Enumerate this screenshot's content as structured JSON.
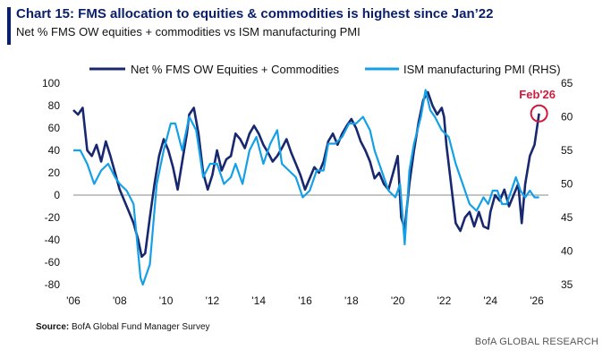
{
  "header": {
    "title": "Chart 15: FMS allocation to equities & commodities is highest since Jan’22",
    "subtitle": "Net % FMS OW equities + commodities vs ISM manufacturing PMI"
  },
  "footer": {
    "source_label": "Source:",
    "source_text": "BofA Global Fund Manager Survey",
    "brand": "BofA GLOBAL RESEARCH"
  },
  "colors": {
    "series1": "#17286f",
    "series2": "#14a0e6",
    "zero_line": "#8a8a8a",
    "annotation": "#d01b3d"
  },
  "chart_data": {
    "type": "line",
    "x_ticks": [
      "'06",
      "'08",
      "'10",
      "'12",
      "'14",
      "'16",
      "'18",
      "'20",
      "'22",
      "'24",
      "'26"
    ],
    "xlim": [
      2006,
      2026.5
    ],
    "ylim_left": [
      -80,
      100
    ],
    "ylim_right": [
      35,
      65
    ],
    "yticks_left": [
      "100",
      "80",
      "60",
      "40",
      "20",
      "0",
      "-20",
      "-40",
      "-60",
      "-80"
    ],
    "yticks_right": [
      "65",
      "60",
      "55",
      "50",
      "45",
      "40",
      "35"
    ],
    "grid": false,
    "legend_position": "top",
    "annotation": {
      "label": "Feb'26",
      "x": 2026.1,
      "y": 73
    },
    "series": [
      {
        "name": "Net % FMS OW Equities + Commodities",
        "axis": "left",
        "points": [
          [
            2006.0,
            76
          ],
          [
            2006.2,
            72
          ],
          [
            2006.4,
            78
          ],
          [
            2006.6,
            40
          ],
          [
            2006.8,
            35
          ],
          [
            2007.0,
            45
          ],
          [
            2007.2,
            30
          ],
          [
            2007.4,
            48
          ],
          [
            2007.6,
            35
          ],
          [
            2007.8,
            20
          ],
          [
            2008.0,
            5
          ],
          [
            2008.2,
            -5
          ],
          [
            2008.4,
            -15
          ],
          [
            2008.6,
            -25
          ],
          [
            2008.8,
            -40
          ],
          [
            2008.95,
            -55
          ],
          [
            2009.1,
            -52
          ],
          [
            2009.3,
            -20
          ],
          [
            2009.5,
            10
          ],
          [
            2009.7,
            35
          ],
          [
            2009.9,
            50
          ],
          [
            2010.1,
            40
          ],
          [
            2010.3,
            25
          ],
          [
            2010.5,
            5
          ],
          [
            2010.7,
            30
          ],
          [
            2010.9,
            55
          ],
          [
            2011.0,
            72
          ],
          [
            2011.2,
            78
          ],
          [
            2011.4,
            55
          ],
          [
            2011.6,
            20
          ],
          [
            2011.8,
            5
          ],
          [
            2012.0,
            18
          ],
          [
            2012.2,
            40
          ],
          [
            2012.4,
            22
          ],
          [
            2012.6,
            32
          ],
          [
            2012.8,
            35
          ],
          [
            2013.0,
            55
          ],
          [
            2013.2,
            50
          ],
          [
            2013.4,
            42
          ],
          [
            2013.6,
            55
          ],
          [
            2013.8,
            62
          ],
          [
            2014.0,
            55
          ],
          [
            2014.2,
            45
          ],
          [
            2014.4,
            38
          ],
          [
            2014.6,
            30
          ],
          [
            2014.8,
            35
          ],
          [
            2015.0,
            42
          ],
          [
            2015.2,
            50
          ],
          [
            2015.4,
            38
          ],
          [
            2015.6,
            28
          ],
          [
            2015.8,
            18
          ],
          [
            2016.0,
            5
          ],
          [
            2016.2,
            15
          ],
          [
            2016.4,
            25
          ],
          [
            2016.6,
            20
          ],
          [
            2016.8,
            30
          ],
          [
            2017.0,
            48
          ],
          [
            2017.2,
            55
          ],
          [
            2017.4,
            45
          ],
          [
            2017.6,
            55
          ],
          [
            2017.8,
            62
          ],
          [
            2018.0,
            68
          ],
          [
            2018.2,
            60
          ],
          [
            2018.4,
            48
          ],
          [
            2018.6,
            40
          ],
          [
            2018.8,
            30
          ],
          [
            2019.0,
            15
          ],
          [
            2019.2,
            20
          ],
          [
            2019.4,
            10
          ],
          [
            2019.6,
            5
          ],
          [
            2019.8,
            20
          ],
          [
            2020.0,
            35
          ],
          [
            2020.15,
            -20
          ],
          [
            2020.3,
            -30
          ],
          [
            2020.5,
            10
          ],
          [
            2020.7,
            40
          ],
          [
            2020.9,
            65
          ],
          [
            2021.1,
            85
          ],
          [
            2021.3,
            92
          ],
          [
            2021.5,
            80
          ],
          [
            2021.7,
            72
          ],
          [
            2021.9,
            78
          ],
          [
            2022.0,
            70
          ],
          [
            2022.1,
            45
          ],
          [
            2022.3,
            10
          ],
          [
            2022.5,
            -25
          ],
          [
            2022.7,
            -32
          ],
          [
            2022.9,
            -20
          ],
          [
            2023.1,
            -15
          ],
          [
            2023.3,
            -28
          ],
          [
            2023.5,
            -15
          ],
          [
            2023.7,
            -28
          ],
          [
            2023.9,
            -30
          ],
          [
            2024.0,
            -15
          ],
          [
            2024.2,
            0
          ],
          [
            2024.4,
            -5
          ],
          [
            2024.6,
            5
          ],
          [
            2024.8,
            -10
          ],
          [
            2025.0,
            0
          ],
          [
            2025.2,
            10
          ],
          [
            2025.35,
            -25
          ],
          [
            2025.5,
            10
          ],
          [
            2025.7,
            35
          ],
          [
            2025.9,
            45
          ],
          [
            2026.1,
            73
          ]
        ]
      },
      {
        "name": "ISM manufacturing PMI (RHS)",
        "axis": "right",
        "points": [
          [
            2006.0,
            55
          ],
          [
            2006.3,
            55
          ],
          [
            2006.6,
            53
          ],
          [
            2006.9,
            50
          ],
          [
            2007.2,
            52
          ],
          [
            2007.5,
            53
          ],
          [
            2007.8,
            51
          ],
          [
            2008.0,
            50
          ],
          [
            2008.3,
            49
          ],
          [
            2008.6,
            47
          ],
          [
            2008.9,
            36
          ],
          [
            2009.0,
            35
          ],
          [
            2009.3,
            38
          ],
          [
            2009.6,
            50
          ],
          [
            2009.9,
            55
          ],
          [
            2010.2,
            59
          ],
          [
            2010.4,
            59
          ],
          [
            2010.7,
            55
          ],
          [
            2011.0,
            60
          ],
          [
            2011.3,
            58
          ],
          [
            2011.6,
            51
          ],
          [
            2011.9,
            53
          ],
          [
            2012.2,
            53
          ],
          [
            2012.5,
            50
          ],
          [
            2012.8,
            51
          ],
          [
            2013.0,
            53
          ],
          [
            2013.3,
            50
          ],
          [
            2013.6,
            55
          ],
          [
            2013.9,
            57
          ],
          [
            2014.2,
            53
          ],
          [
            2014.5,
            56
          ],
          [
            2014.8,
            58
          ],
          [
            2015.0,
            53
          ],
          [
            2015.3,
            52
          ],
          [
            2015.6,
            51
          ],
          [
            2015.9,
            48
          ],
          [
            2016.2,
            49
          ],
          [
            2016.5,
            52
          ],
          [
            2016.8,
            52
          ],
          [
            2017.0,
            56
          ],
          [
            2017.3,
            56
          ],
          [
            2017.6,
            57
          ],
          [
            2017.9,
            59
          ],
          [
            2018.2,
            59
          ],
          [
            2018.5,
            60
          ],
          [
            2018.8,
            58
          ],
          [
            2019.0,
            55
          ],
          [
            2019.3,
            52
          ],
          [
            2019.6,
            49
          ],
          [
            2019.9,
            48
          ],
          [
            2020.1,
            50
          ],
          [
            2020.3,
            41
          ],
          [
            2020.5,
            52
          ],
          [
            2020.7,
            56
          ],
          [
            2021.0,
            60
          ],
          [
            2021.2,
            64
          ],
          [
            2021.4,
            61
          ],
          [
            2021.6,
            60
          ],
          [
            2021.9,
            58
          ],
          [
            2022.2,
            57
          ],
          [
            2022.5,
            53
          ],
          [
            2022.8,
            50
          ],
          [
            2023.1,
            47
          ],
          [
            2023.4,
            46
          ],
          [
            2023.7,
            48
          ],
          [
            2023.9,
            47
          ],
          [
            2024.1,
            49
          ],
          [
            2024.3,
            49
          ],
          [
            2024.5,
            47
          ],
          [
            2024.7,
            47
          ],
          [
            2024.9,
            49
          ],
          [
            2025.1,
            51
          ],
          [
            2025.3,
            49
          ],
          [
            2025.5,
            48
          ],
          [
            2025.7,
            49
          ],
          [
            2025.9,
            48
          ],
          [
            2026.1,
            48
          ]
        ]
      }
    ]
  }
}
